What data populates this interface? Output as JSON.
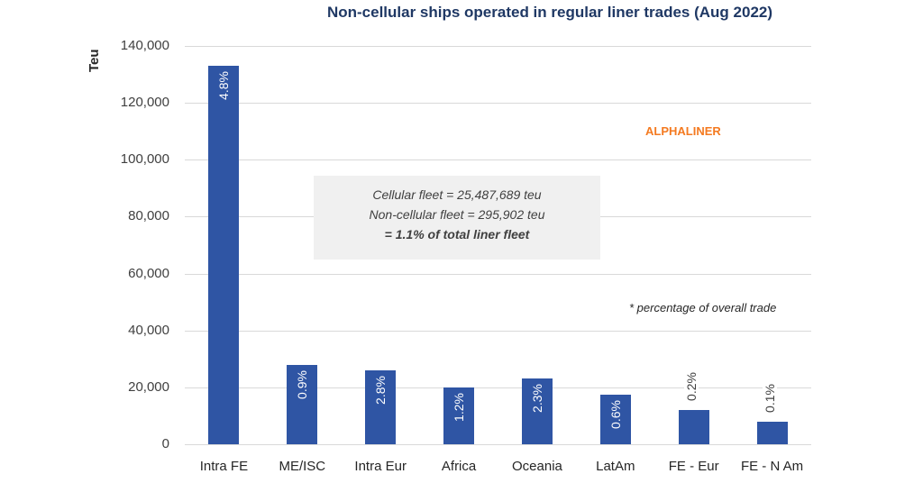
{
  "chart_data": {
    "type": "bar",
    "title": "Non-cellular ships operated in regular liner trades (Aug 2022)",
    "xlabel": "",
    "ylabel": "Teu",
    "ylim": [
      0,
      140000
    ],
    "yticks": [
      "0",
      "20,000",
      "40,000",
      "60,000",
      "80,000",
      "100,000",
      "120,000",
      "140,000"
    ],
    "grid": true,
    "categories": [
      "Intra FE",
      "ME/ISC",
      "Intra Eur",
      "Africa",
      "Oceania",
      "LatAm",
      "FE - Eur",
      "FE - N Am"
    ],
    "values": [
      133000,
      28000,
      26000,
      20000,
      23000,
      17500,
      12000,
      8000
    ],
    "data_labels": [
      "4.8%",
      "0.9%",
      "2.8%",
      "1.2%",
      "2.3%",
      "0.6%",
      "0.2%",
      "0.1%"
    ],
    "bar_color": "#2f55a4",
    "annotations": {
      "brand": "ALPHALINER",
      "infobox": [
        "Cellular fleet = 25,487,689 teu",
        "Non-cellular fleet = 295,902 teu",
        "= 1.1% of total liner fleet"
      ],
      "note": "* percentage of overall trade"
    }
  }
}
